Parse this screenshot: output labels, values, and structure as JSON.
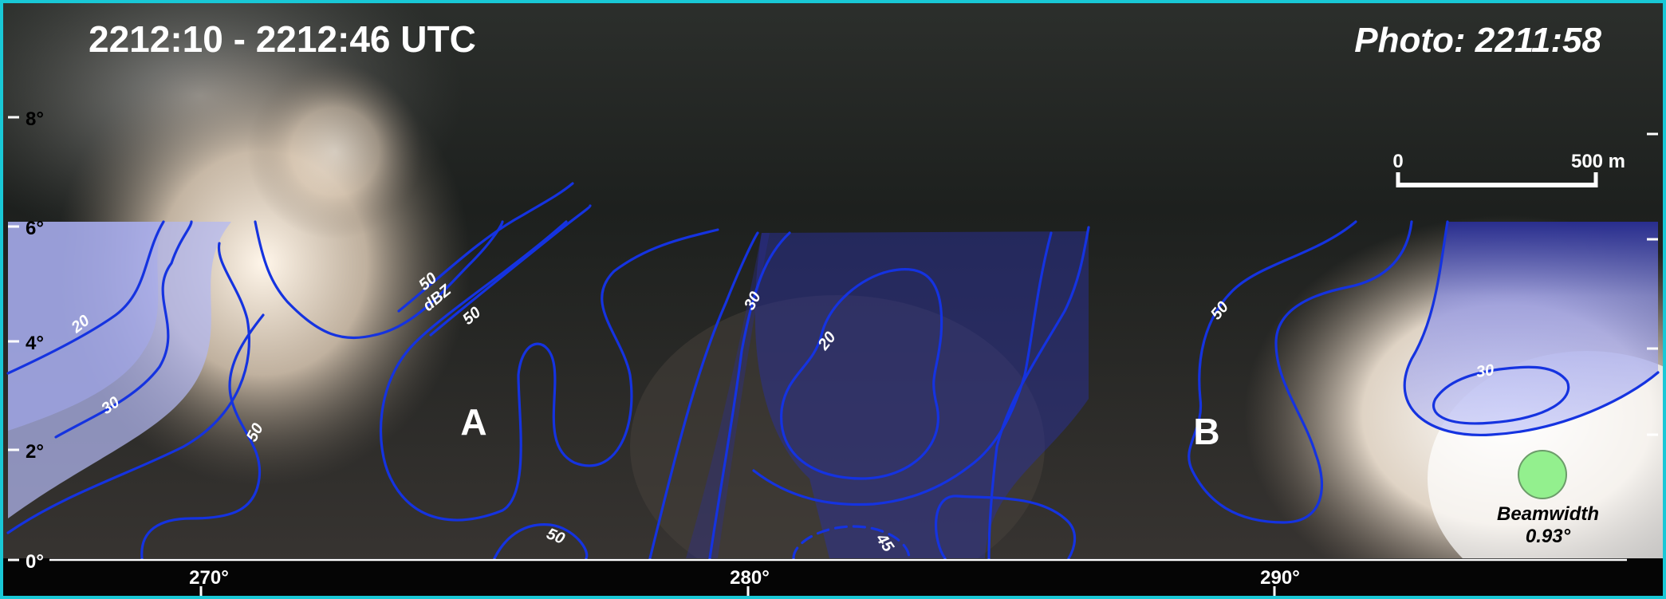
{
  "header": {
    "time_range": "2212:10 - 2212:46 UTC",
    "photo_time": "Photo: 2211:58"
  },
  "scale_bar": {
    "start_label": "0",
    "end_label": "500 m"
  },
  "y_axis": {
    "ticks": [
      "8°",
      "6°",
      "4°",
      "2°",
      "0°"
    ]
  },
  "x_axis": {
    "ticks": [
      "270°",
      "280°",
      "290°"
    ]
  },
  "markers": {
    "a": "A",
    "b": "B"
  },
  "contour_labels": {
    "c20_left": "20",
    "c30_left": "30",
    "c50_left": "50",
    "c50_top_value": "50",
    "c50_top_unit": "dBZ",
    "c50_mid": "50",
    "c50_bottom": "50",
    "c30_center": "30",
    "c20_center": "20",
    "c45_bottom": "45",
    "c50_right": "50",
    "c30_right": "30"
  },
  "beamwidth": {
    "label": "Beamwidth",
    "value": "0.93°"
  },
  "colors": {
    "border": "#19c8d6",
    "contour": "#1533e0",
    "shade_low": "#b3b8f3",
    "shade_high": "#2a2f9a",
    "beam_circle": "#93f08e"
  }
}
